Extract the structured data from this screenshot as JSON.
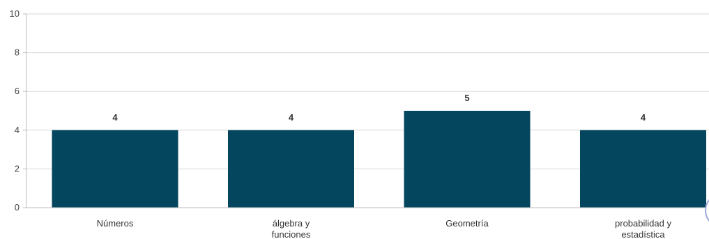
{
  "chart_data": {
    "type": "bar",
    "title": "",
    "xlabel": "",
    "ylabel": "",
    "categories": [
      "Números",
      "álgebra y funciones",
      "Geometría",
      "probabilidad y estadística"
    ],
    "category_lines": [
      [
        "Números"
      ],
      [
        "álgebra y",
        "funciones"
      ],
      [
        "Geometría"
      ],
      [
        "probabilidad y",
        "estadística"
      ]
    ],
    "values": [
      4,
      4,
      5,
      4
    ],
    "ylim": [
      0,
      10
    ],
    "yticks": [
      0,
      2,
      4,
      6,
      8,
      10
    ],
    "grid": true,
    "legend": "none",
    "bar_color": "#03465d"
  }
}
